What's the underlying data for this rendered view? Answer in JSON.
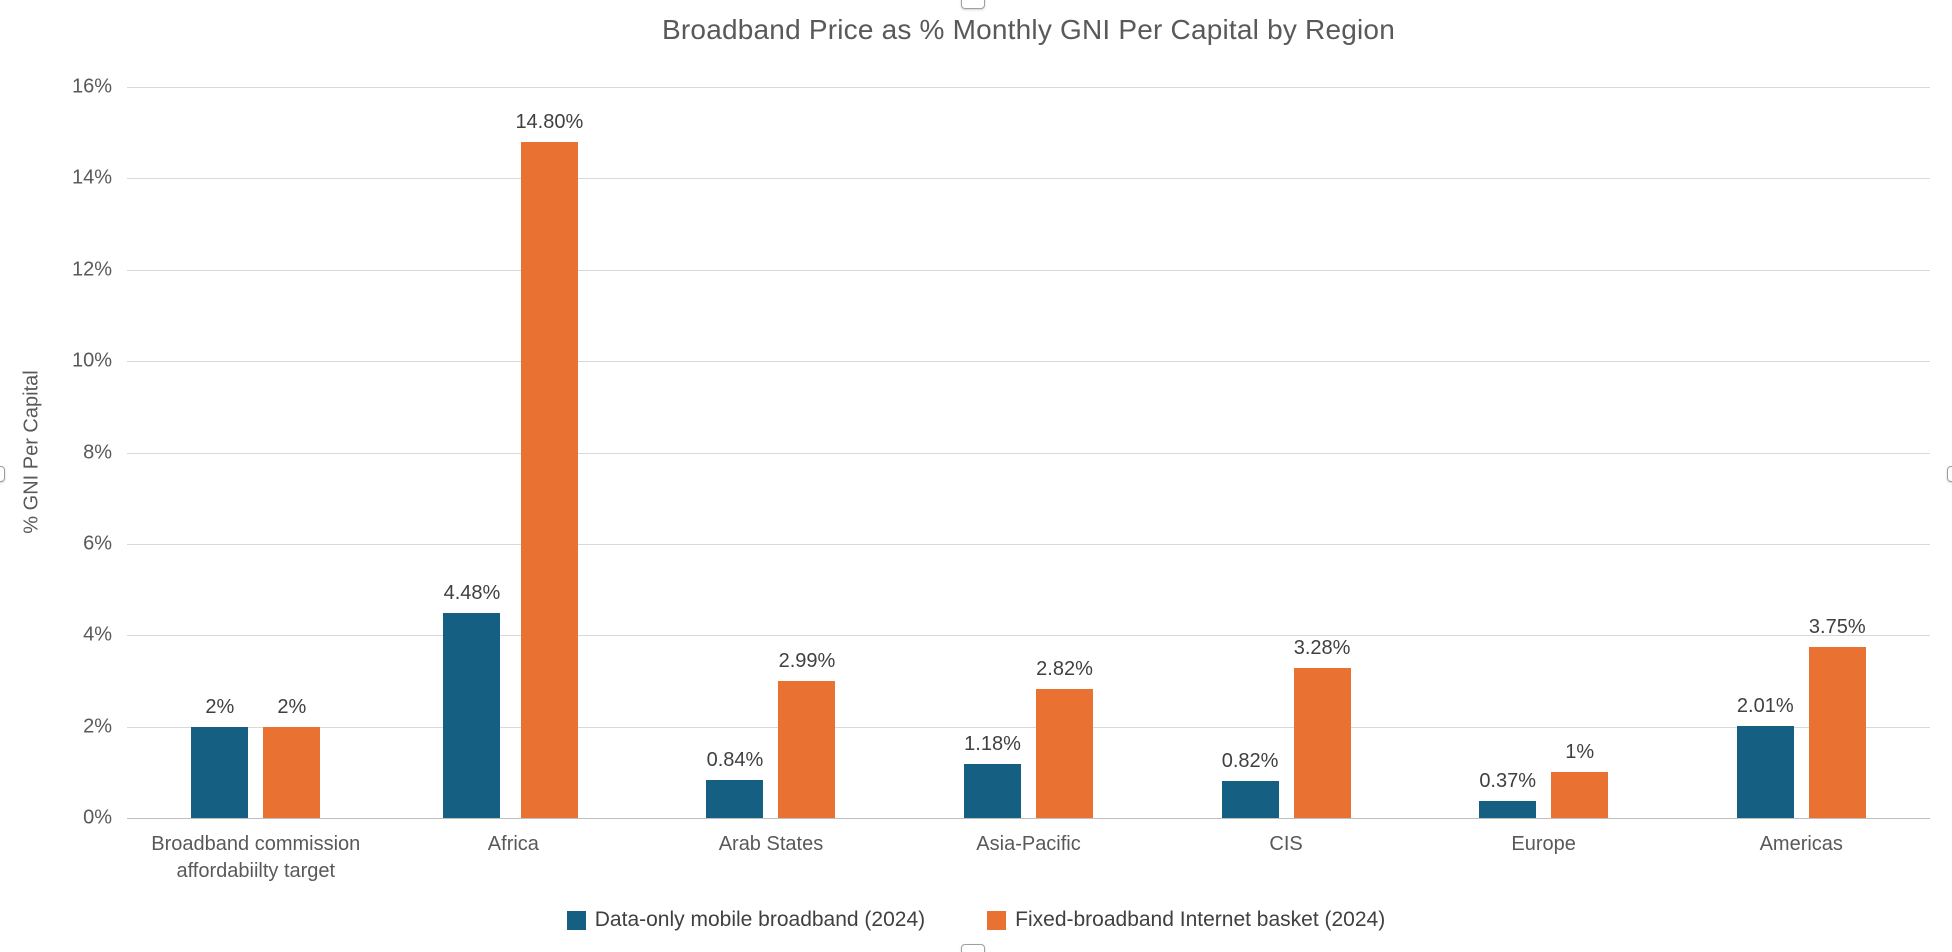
{
  "chart_data": {
    "type": "bar",
    "title": "Broadband Price as % Monthly GNI Per Capital by Region",
    "xlabel": "",
    "ylabel": "% GNI Per Capital",
    "ylim": [
      0,
      16
    ],
    "yticks": [
      "0%",
      "2%",
      "4%",
      "6%",
      "8%",
      "10%",
      "12%",
      "14%",
      "16%"
    ],
    "grid": true,
    "legend_position": "bottom",
    "categories": [
      "Broadband commission affordabiilty target",
      "Africa",
      "Arab States",
      "Asia-Pacific",
      "CIS",
      "Europe",
      "Americas"
    ],
    "series": [
      {
        "name": "Data-only mobile broadband (2024)",
        "color": "#156082",
        "values": [
          2,
          4.48,
          0.84,
          1.18,
          0.82,
          0.37,
          2.01
        ],
        "labels": [
          "2%",
          "4.48%",
          "0.84%",
          "1.18%",
          "0.82%",
          "0.37%",
          "2.01%"
        ]
      },
      {
        "name": "Fixed-broadband Internet basket (2024)",
        "color": "#E97132",
        "values": [
          2,
          14.8,
          2.99,
          2.82,
          3.28,
          1,
          3.75
        ],
        "labels": [
          "2%",
          "14.80%",
          "2.99%",
          "2.82%",
          "3.28%",
          "1%",
          "3.75%"
        ]
      }
    ],
    "grid_color": "#D9D9D9",
    "axis_color": "#BFBFBF",
    "tick_text_color": "#595959",
    "data_label_color": "#404040"
  }
}
